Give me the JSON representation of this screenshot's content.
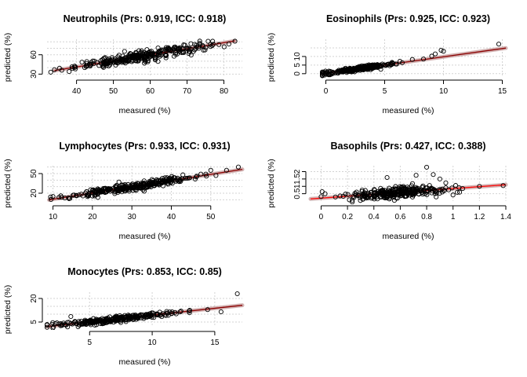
{
  "chart_data": [
    {
      "type": "scatter",
      "title": "Neutrophils (Prs: 0.919, ICC: 0.918)",
      "xlabel": "measured (%)",
      "ylabel": "predicted (%)",
      "xlim": [
        32,
        85
      ],
      "ylim": [
        28,
        84
      ],
      "xticks": [
        40,
        50,
        60,
        70,
        80
      ],
      "yticks": [
        30,
        60
      ],
      "ygrid": [
        30,
        40,
        50,
        60,
        70,
        80
      ],
      "grid": true,
      "fit_color": "#8b0000",
      "range_x": [
        34,
        83
      ],
      "slope": 0.94,
      "intercept": 3.5,
      "noise": 4.0,
      "n": 300,
      "x_mean": 58,
      "x_sd": 9,
      "points": [
        [
          33,
          33
        ],
        [
          36,
          36
        ],
        [
          38,
          34
        ],
        [
          44,
          48
        ],
        [
          83,
          81
        ]
      ]
    },
    {
      "type": "scatter",
      "title": "Eosinophils (Prs: 0.925, ICC: 0.923)",
      "xlabel": "measured (%)",
      "ylabel": "predicted (%)",
      "xlim": [
        -1.3,
        15.3
      ],
      "ylim": [
        -1,
        20
      ],
      "xticks": [
        0,
        5,
        10,
        15
      ],
      "yticks": [
        0,
        5,
        10
      ],
      "ygrid": [
        0,
        5,
        10,
        15
      ],
      "grid": true,
      "fit_color": "#8b0000",
      "range_x": [
        -0.3,
        15.3
      ],
      "slope": 0.96,
      "intercept": 0.2,
      "noise": 0.6,
      "n": 300,
      "x_mean": 2.8,
      "x_sd": 1.5,
      "points": [
        [
          6.3,
          7.2
        ],
        [
          8.3,
          8.5
        ],
        [
          9.0,
          10.2
        ],
        [
          9.3,
          11.5
        ],
        [
          9.8,
          13.6
        ],
        [
          10.0,
          13.0
        ],
        [
          14.7,
          17.2
        ],
        [
          -0.2,
          0.8
        ]
      ]
    },
    {
      "type": "scatter",
      "title": "Lymphocytes (Prs: 0.933, ICC: 0.931)",
      "xlabel": "measured (%)",
      "ylabel": "predicted (%)",
      "xlim": [
        8.5,
        58
      ],
      "ylim": [
        8,
        62
      ],
      "xticks": [
        10,
        20,
        30,
        40,
        50
      ],
      "yticks": [
        20,
        50
      ],
      "ygrid": [
        10,
        20,
        30,
        40,
        50,
        60
      ],
      "grid": true,
      "fit_color": "#8b0000",
      "range_x": [
        9,
        58
      ],
      "slope": 0.95,
      "intercept": 1.3,
      "noise": 3.0,
      "n": 300,
      "x_mean": 31,
      "x_sd": 8,
      "points": [
        [
          10,
          15
        ],
        [
          12,
          16
        ],
        [
          50,
          55
        ],
        [
          54,
          55
        ],
        [
          57,
          60
        ]
      ]
    },
    {
      "type": "scatter",
      "title": "Basophils (Prs: 0.427, ICC: 0.388)",
      "xlabel": "measured (%)",
      "ylabel": "predicted (%)",
      "xlim": [
        -0.08,
        1.4
      ],
      "ylim": [
        0.0,
        2.4
      ],
      "xticks": [
        0.0,
        0.2,
        0.4,
        0.6,
        0.8,
        1.0,
        1.2,
        1.4
      ],
      "yticks": [
        0.5,
        1.0,
        1.5,
        2.0
      ],
      "ygrid": [
        0.5,
        1.0,
        1.5,
        2.0
      ],
      "grid": true,
      "fit_color": "#ff0000",
      "range_x": [
        -0.08,
        1.4
      ],
      "slope": 0.65,
      "intercept": 0.2,
      "noise": 0.2,
      "n": 300,
      "x_mean": 0.58,
      "x_sd": 0.2,
      "points": [
        [
          0.0,
          0.3
        ],
        [
          0.03,
          0.5
        ],
        [
          0.8,
          2.3
        ],
        [
          0.85,
          1.8
        ],
        [
          1.2,
          1.0
        ],
        [
          1.38,
          1.05
        ],
        [
          0.5,
          1.6
        ],
        [
          0.72,
          1.75
        ],
        [
          0.9,
          1.5
        ]
      ]
    },
    {
      "type": "scatter",
      "title": "Monocytes (Prs: 0.853, ICC: 0.85)",
      "xlabel": "measured (%)",
      "ylabel": "predicted (%)",
      "xlim": [
        1.6,
        17.2
      ],
      "ylim": [
        2,
        24
      ],
      "xticks": [
        5,
        10,
        15
      ],
      "yticks": [
        5,
        20
      ],
      "ygrid": [
        5,
        10,
        15,
        20
      ],
      "grid": true,
      "fit_color": "#8b0000",
      "range_x": [
        1.6,
        17.2
      ],
      "slope": 0.87,
      "intercept": 0.7,
      "noise": 0.9,
      "n": 300,
      "x_mean": 7,
      "x_sd": 2.2,
      "points": [
        [
          16.8,
          23
        ],
        [
          13.0,
          12.5
        ],
        [
          12.3,
          12.0
        ],
        [
          15.5,
          11.5
        ],
        [
          3.5,
          8.5
        ],
        [
          2.0,
          3.5
        ]
      ]
    }
  ]
}
